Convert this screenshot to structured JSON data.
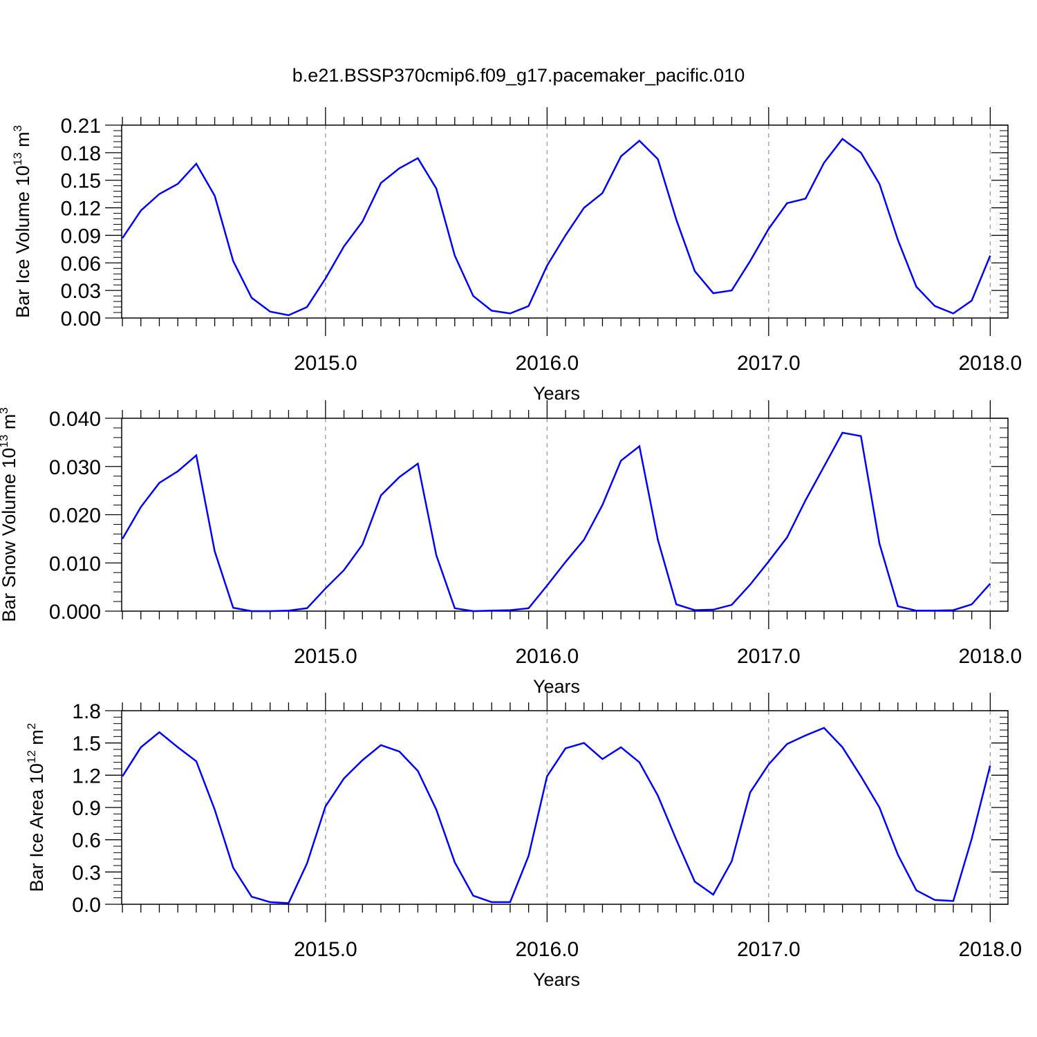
{
  "figure_title": "b.e21.BSSP370cmip6.f09_g17.pacemaker_pacific.010",
  "chart_data": [
    {
      "type": "line",
      "title": "",
      "xlabel": "Years",
      "ylabel": "Bar Ice Volume 10",
      "ylabel_exponent": "13",
      "ylabel_unit": "m",
      "ylabel_unit_exponent": "3",
      "xlim": [
        2014.08,
        2018.08
      ],
      "ylim": [
        0,
        0.21
      ],
      "x_ticks": [
        2015.0,
        2016.0,
        2017.0,
        2018.0
      ],
      "x_tick_labels": [
        "2015.0",
        "2016.0",
        "2017.0",
        "2018.0"
      ],
      "y_ticks": [
        0,
        0.03,
        0.06,
        0.09,
        0.12,
        0.15,
        0.18,
        0.21
      ],
      "y_tick_labels": [
        "0.00",
        "0.03",
        "0.06",
        "0.09",
        "0.12",
        "0.15",
        "0.18",
        "0.21"
      ],
      "grid": "vertical dashed at major x ticks",
      "line_color": "#0000ff",
      "series": [
        {
          "x_start": 2014.0833,
          "x_step": 0.08333,
          "values": [
            0.087,
            0.117,
            0.135,
            0.146,
            0.168,
            0.133,
            0.062,
            0.022,
            0.007,
            0.003,
            0.012,
            0.043,
            0.078,
            0.105,
            0.147,
            0.163,
            0.174,
            0.141,
            0.068,
            0.024,
            0.008,
            0.005,
            0.013,
            0.057,
            0.09,
            0.12,
            0.136,
            0.176,
            0.193,
            0.173,
            0.107,
            0.051,
            0.027,
            0.03,
            0.062,
            0.097,
            0.125,
            0.13,
            0.169,
            0.195,
            0.18,
            0.146,
            0.085,
            0.034,
            0.013,
            0.005,
            0.019,
            0.068
          ]
        }
      ]
    },
    {
      "type": "line",
      "title": "",
      "xlabel": "Years",
      "ylabel": "Bar Snow Volume 10",
      "ylabel_exponent": "13",
      "ylabel_unit": "m",
      "ylabel_unit_exponent": "3",
      "xlim": [
        2014.08,
        2018.08
      ],
      "ylim": [
        0,
        0.04
      ],
      "x_ticks": [
        2015.0,
        2016.0,
        2017.0,
        2018.0
      ],
      "x_tick_labels": [
        "2015.0",
        "2016.0",
        "2017.0",
        "2018.0"
      ],
      "y_ticks": [
        0,
        0.01,
        0.02,
        0.03,
        0.04
      ],
      "y_tick_labels": [
        "0.000",
        "0.010",
        "0.020",
        "0.030",
        "0.040"
      ],
      "grid": "vertical dashed at major x ticks",
      "line_color": "#0000ff",
      "series": [
        {
          "x_start": 2014.0833,
          "x_step": 0.08333,
          "values": [
            0.015,
            0.0216,
            0.0266,
            0.029,
            0.0323,
            0.0124,
            0.0007,
            0.0,
            0.0,
            0.0001,
            0.0006,
            0.0047,
            0.0085,
            0.0138,
            0.024,
            0.0278,
            0.0306,
            0.0116,
            0.0006,
            0.0,
            0.0001,
            0.0002,
            0.0006,
            0.0053,
            0.0102,
            0.0148,
            0.022,
            0.0312,
            0.0342,
            0.0148,
            0.0014,
            0.0002,
            0.0003,
            0.0013,
            0.0055,
            0.0103,
            0.0153,
            0.023,
            0.03,
            0.037,
            0.0363,
            0.014,
            0.001,
            0.0001,
            0.0001,
            0.0002,
            0.0014,
            0.0057
          ]
        }
      ]
    },
    {
      "type": "line",
      "title": "",
      "xlabel": "Years",
      "ylabel": "Bar Ice Area 10",
      "ylabel_exponent": "12",
      "ylabel_unit": "m",
      "ylabel_unit_exponent": "2",
      "xlim": [
        2014.08,
        2018.08
      ],
      "ylim": [
        0,
        1.8
      ],
      "x_ticks": [
        2015.0,
        2016.0,
        2017.0,
        2018.0
      ],
      "x_tick_labels": [
        "2015.0",
        "2016.0",
        "2017.0",
        "2018.0"
      ],
      "y_ticks": [
        0,
        0.3,
        0.6,
        0.9,
        1.2,
        1.5,
        1.8
      ],
      "y_tick_labels": [
        "0.0",
        "0.3",
        "0.6",
        "0.9",
        "1.2",
        "1.5",
        "1.8"
      ],
      "grid": "vertical dashed at major x ticks",
      "line_color": "#0000ff",
      "series": [
        {
          "x_start": 2014.0833,
          "x_step": 0.08333,
          "values": [
            1.19,
            1.46,
            1.6,
            1.46,
            1.33,
            0.88,
            0.34,
            0.07,
            0.02,
            0.01,
            0.38,
            0.91,
            1.17,
            1.34,
            1.48,
            1.42,
            1.24,
            0.88,
            0.39,
            0.08,
            0.02,
            0.02,
            0.45,
            1.19,
            1.45,
            1.5,
            1.35,
            1.46,
            1.32,
            1.01,
            0.6,
            0.21,
            0.09,
            0.4,
            1.04,
            1.3,
            1.49,
            1.57,
            1.64,
            1.46,
            1.19,
            0.9,
            0.46,
            0.13,
            0.04,
            0.03,
            0.61,
            1.29
          ]
        }
      ]
    }
  ]
}
